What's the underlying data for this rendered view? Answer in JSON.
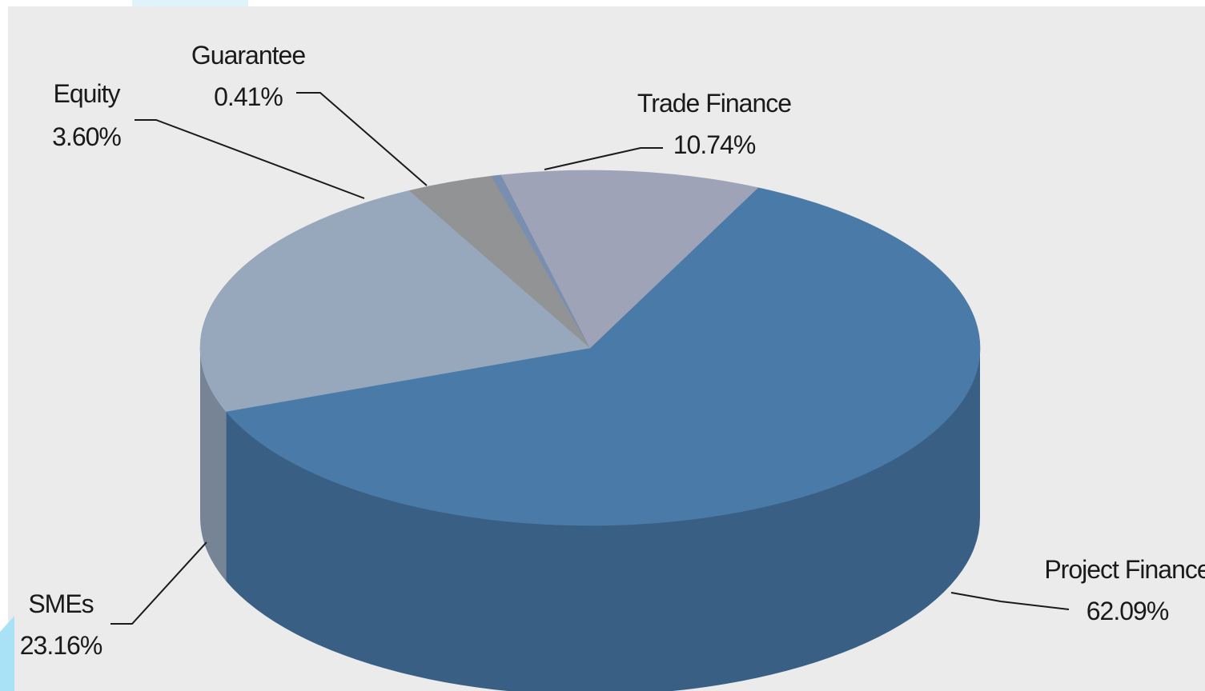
{
  "chart_data": {
    "type": "pie",
    "style": "3d",
    "slices": [
      {
        "label": "Project Finance",
        "value": 62.09,
        "value_label": "62.09%",
        "color": "#4a7aa7",
        "side_color": "#3a5f84"
      },
      {
        "label": "SMEs",
        "value": 23.16,
        "value_label": "23.16%",
        "color": "#97a8bd",
        "side_color": "#768496"
      },
      {
        "label": "Equity",
        "value": 3.6,
        "value_label": "3.60%",
        "color": "#919395",
        "side_color": "#737577"
      },
      {
        "label": "Guarantee",
        "value": 0.41,
        "value_label": "0.41%",
        "color": "#7a8fb0",
        "side_color": "#5f708c"
      },
      {
        "label": "Trade Finance",
        "value": 10.74,
        "value_label": "10.74%",
        "color": "#9ea3b8",
        "side_color": "#7e8293"
      }
    ],
    "background_color": "#ebebeb",
    "leader_line_color": "#1a1a1a"
  }
}
